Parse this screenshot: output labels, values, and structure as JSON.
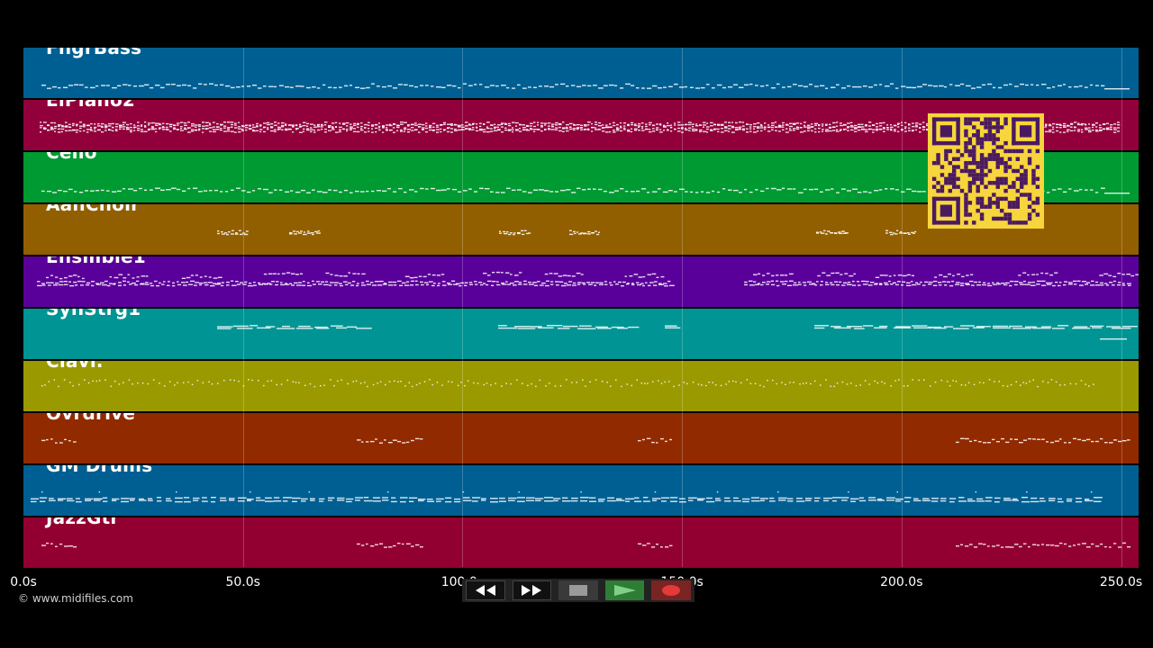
{
  "tracks": [
    {
      "name": "FngrBass",
      "color": "#005f92",
      "pattern": "melody"
    },
    {
      "name": "ElPiano2",
      "color": "#92003c",
      "pattern": "dense"
    },
    {
      "name": "Cello",
      "color": "#009a33",
      "pattern": "melody"
    },
    {
      "name": "AahChoir",
      "color": "#925f00",
      "pattern": "sparse"
    },
    {
      "name": "Ensmble1",
      "color": "#5a009a",
      "pattern": "chords"
    },
    {
      "name": "SynStrg1",
      "color": "#009494",
      "pattern": "sustain"
    },
    {
      "name": "Clavi.",
      "color": "#9a9a00",
      "pattern": "dots"
    },
    {
      "name": "Ovrdrive",
      "color": "#922a00",
      "pattern": "phrases"
    },
    {
      "name": "GM Drums",
      "color": "#005f92",
      "pattern": "drums"
    },
    {
      "name": "JazzGtr",
      "color": "#920032",
      "pattern": "phrases"
    }
  ],
  "axis": {
    "ticks": [
      "0.0s",
      "50.0s",
      "100.0s",
      "150.0s",
      "200.0s",
      "250.0s"
    ],
    "range": [
      0,
      254
    ]
  },
  "copyright": "© www.midifiles.com",
  "transport": {
    "rewind": "rewind-icon",
    "fast_forward": "fast-forward-icon",
    "stop": "stop-icon",
    "play": "play-icon",
    "record": "record-icon"
  }
}
